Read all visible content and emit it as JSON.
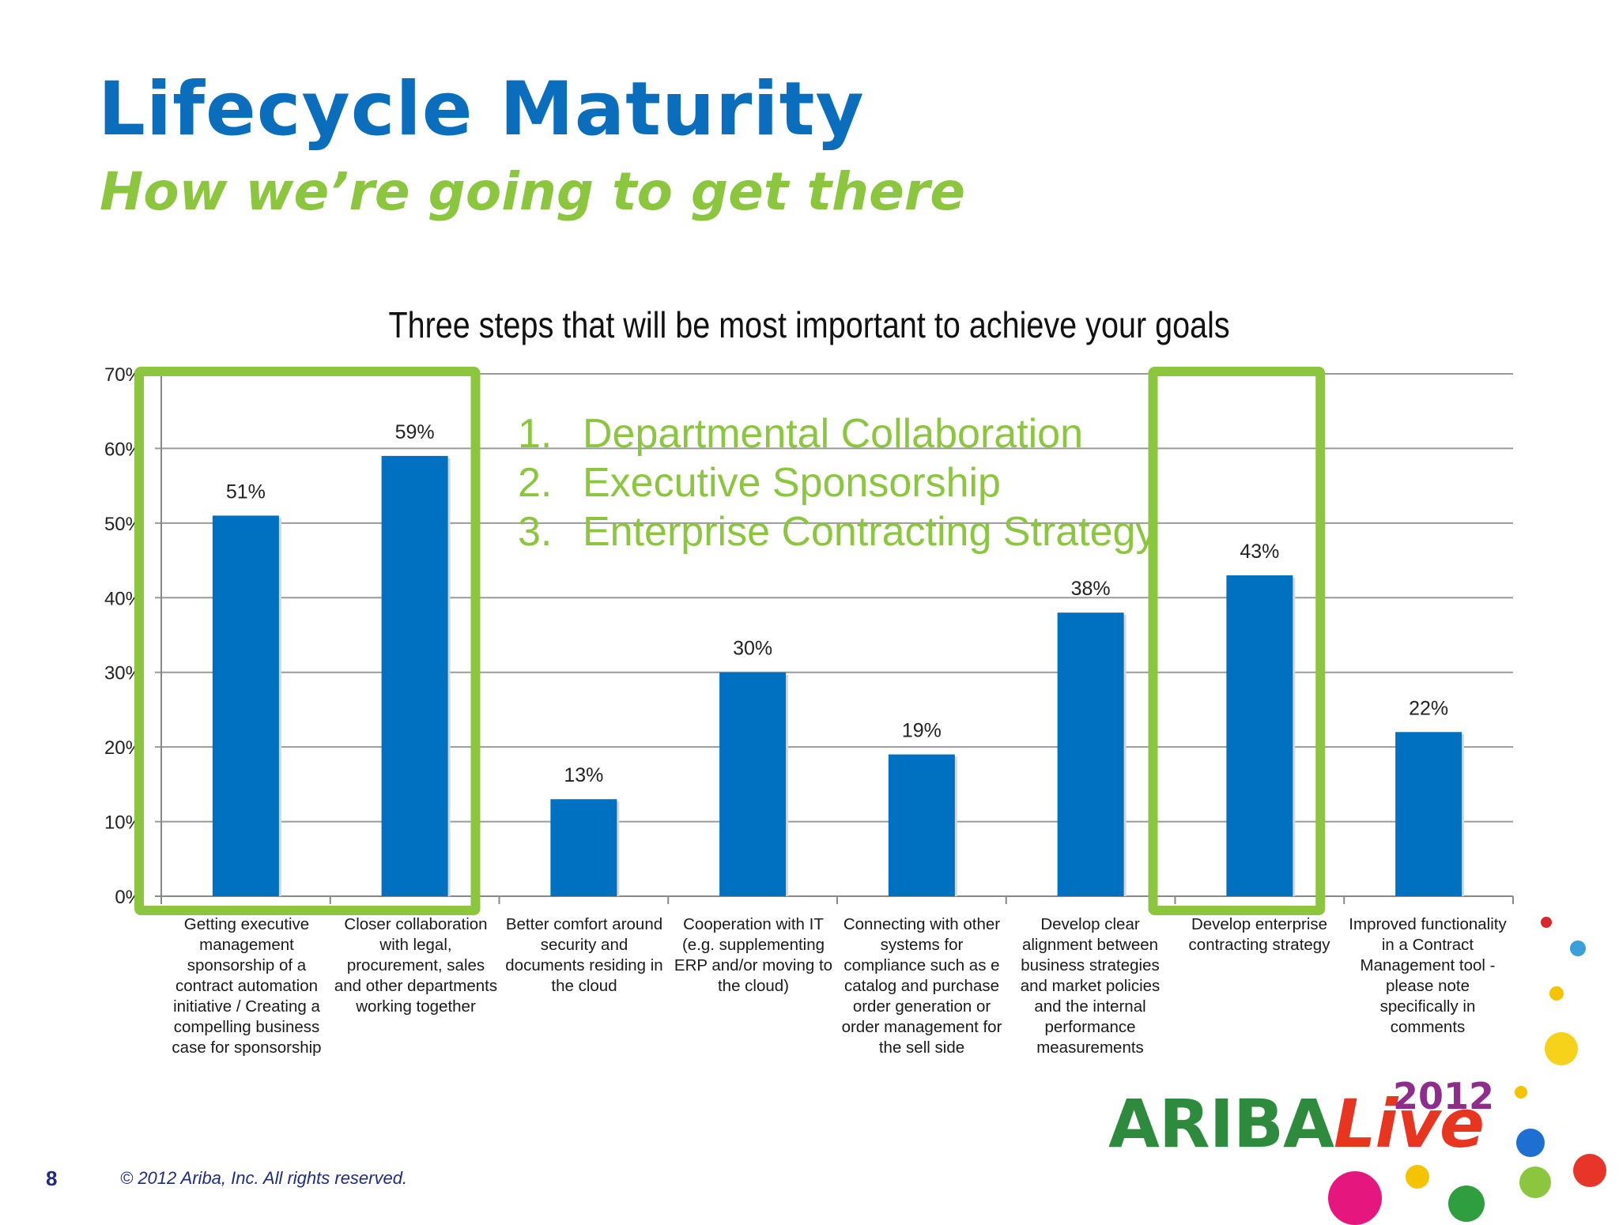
{
  "slide": {
    "title": "Lifecycle Maturity",
    "subtitle": "How we’re going to get there",
    "page_number": "8",
    "copyright": "© 2012 Ariba, Inc. All rights reserved.",
    "logo": {
      "brand": "ARIBA",
      "event": "Live",
      "year": "2012"
    }
  },
  "overlay": {
    "color": "#8cc63f",
    "items": [
      {
        "num": "1.",
        "text": "Departmental Collaboration"
      },
      {
        "num": "2.",
        "text": "Executive Sponsorship"
      },
      {
        "num": "3.",
        "text": "Enterprise Contracting Strategy"
      }
    ]
  },
  "chart_data": {
    "type": "bar",
    "title": "Three steps that will be most important to achieve your goals",
    "categories": [
      "Getting executive management sponsorship of a contract automation initiative / Creating a compelling business case for sponsorship",
      "Closer collaboration with legal, procurement, sales and other departments working together",
      "Better comfort around security and documents residing in the cloud",
      "Cooperation with IT (e.g. supplementing ERP and/or moving to the cloud)",
      "Connecting with other systems for compliance such as e catalog and purchase order generation or order management for the sell side",
      "Develop clear alignment between business strategies and market policies and the internal performance measurements",
      "Develop enterprise contracting strategy",
      "Improved functionality in a Contract Management tool - please note specifically in comments"
    ],
    "values": [
      51,
      59,
      13,
      30,
      19,
      38,
      43,
      22
    ],
    "data_labels": [
      "51%",
      "59%",
      "13%",
      "30%",
      "19%",
      "38%",
      "43%",
      "22%"
    ],
    "ylim": [
      0,
      70
    ],
    "yticks": [
      0,
      10,
      20,
      30,
      40,
      50,
      60,
      70
    ],
    "ytick_labels": [
      "0%",
      "10%",
      "20%",
      "30%",
      "40%",
      "50%",
      "60%",
      "70%"
    ],
    "xlabel": "",
    "ylabel": "",
    "grid": true,
    "bar_color": "#0070c0",
    "highlight_color": "#8cc63f"
  }
}
